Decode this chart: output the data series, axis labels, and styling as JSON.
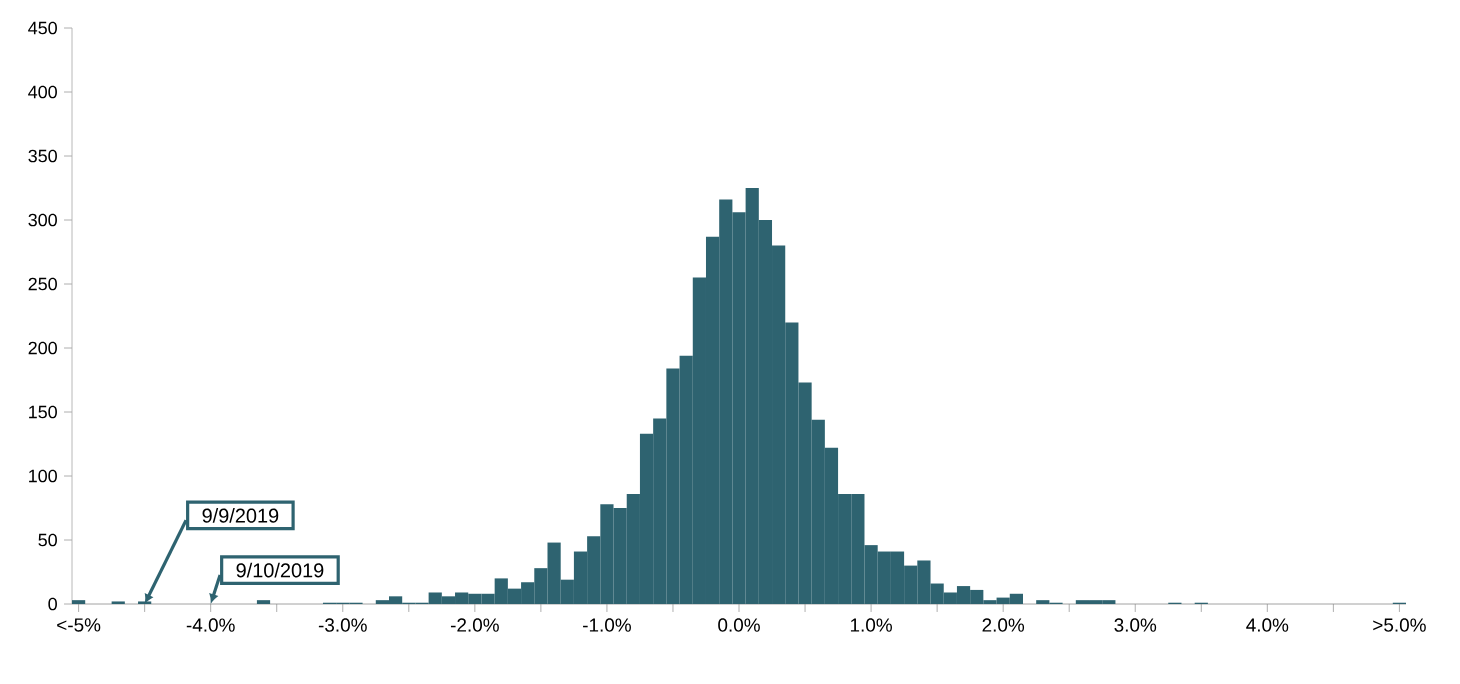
{
  "chart_data": {
    "type": "histogram",
    "bins": [
      -5.05,
      -4.95,
      -4.85,
      -4.75,
      -4.65,
      -4.55,
      -4.45,
      -4.35,
      -4.25,
      -4.15,
      -4.05,
      -3.95,
      -3.85,
      -3.75,
      -3.65,
      -3.55,
      -3.45,
      -3.35,
      -3.25,
      -3.15,
      -3.05,
      -2.95,
      -2.85,
      -2.75,
      -2.65,
      -2.55,
      -2.45,
      -2.35,
      -2.25,
      -2.15,
      -2.05,
      -1.95,
      -1.85,
      -1.75,
      -1.65,
      -1.55,
      -1.45,
      -1.35,
      -1.25,
      -1.15,
      -1.05,
      -0.95,
      -0.85,
      -0.75,
      -0.65,
      -0.55,
      -0.45,
      -0.35,
      -0.25,
      -0.15,
      -0.05,
      0.05,
      0.15,
      0.25,
      0.35,
      0.45,
      0.55,
      0.65,
      0.75,
      0.85,
      0.95,
      1.05,
      1.15,
      1.25,
      1.35,
      1.45,
      1.55,
      1.65,
      1.75,
      1.85,
      1.95,
      2.05,
      2.15,
      2.25,
      2.35,
      2.45,
      2.55,
      2.65,
      2.75,
      2.85,
      2.95,
      3.05,
      3.15,
      3.25,
      3.35,
      3.45,
      3.55,
      3.65,
      3.75,
      3.85,
      3.95,
      4.05,
      4.15,
      4.25,
      4.35,
      4.45,
      4.55,
      4.65,
      4.75,
      4.85,
      4.95,
      5.05
    ],
    "values": [
      3,
      0,
      0,
      2,
      0,
      2,
      0,
      0,
      0,
      0,
      0,
      0,
      0,
      0,
      3,
      0,
      0,
      0,
      0,
      1,
      1,
      1,
      0,
      3,
      6,
      1,
      1,
      9,
      6,
      9,
      8,
      8,
      20,
      12,
      17,
      28,
      48,
      19,
      41,
      53,
      78,
      75,
      86,
      133,
      145,
      184,
      194,
      255,
      287,
      316,
      306,
      325,
      300,
      280,
      220,
      173,
      144,
      122,
      86,
      86,
      46,
      41,
      41,
      30,
      34,
      16,
      9,
      14,
      11,
      3,
      5,
      8,
      0,
      3,
      1,
      0,
      3,
      3,
      3,
      0,
      0,
      0,
      0,
      1,
      0,
      1,
      0,
      0,
      0,
      0,
      0,
      0,
      0,
      0,
      0,
      0,
      0,
      0,
      0,
      0,
      1
    ],
    "color": "#2e6370",
    "xlim": [
      -5.05,
      5.05
    ],
    "ylim": [
      0,
      450
    ],
    "xticks": [
      {
        "value": -5,
        "label": "<-5%"
      },
      {
        "value": -4.5,
        "label": null
      },
      {
        "value": -4,
        "label": "-4.0%"
      },
      {
        "value": -3.5,
        "label": null
      },
      {
        "value": -3,
        "label": "-3.0%"
      },
      {
        "value": -2.5,
        "label": null
      },
      {
        "value": -2,
        "label": "-2.0%"
      },
      {
        "value": -1.5,
        "label": null
      },
      {
        "value": -1,
        "label": "-1.0%"
      },
      {
        "value": -0.5,
        "label": null
      },
      {
        "value": 0,
        "label": "0.0%"
      },
      {
        "value": 0.5,
        "label": null
      },
      {
        "value": 1,
        "label": "1.0%"
      },
      {
        "value": 1.5,
        "label": null
      },
      {
        "value": 2,
        "label": "2.0%"
      },
      {
        "value": 2.5,
        "label": null
      },
      {
        "value": 3,
        "label": "3.0%"
      },
      {
        "value": 3.5,
        "label": null
      },
      {
        "value": 4,
        "label": "4.0%"
      },
      {
        "value": 4.5,
        "label": null
      },
      {
        "value": 5,
        "label": ">5.0%"
      }
    ],
    "yticks": [
      0,
      50,
      100,
      150,
      200,
      250,
      300,
      350,
      400,
      450
    ],
    "annotations": [
      {
        "text": "9/9/2019",
        "x": -4.5,
        "y": 0
      },
      {
        "text": "9/10/2019",
        "x": -4.0,
        "y": 0
      }
    ]
  }
}
